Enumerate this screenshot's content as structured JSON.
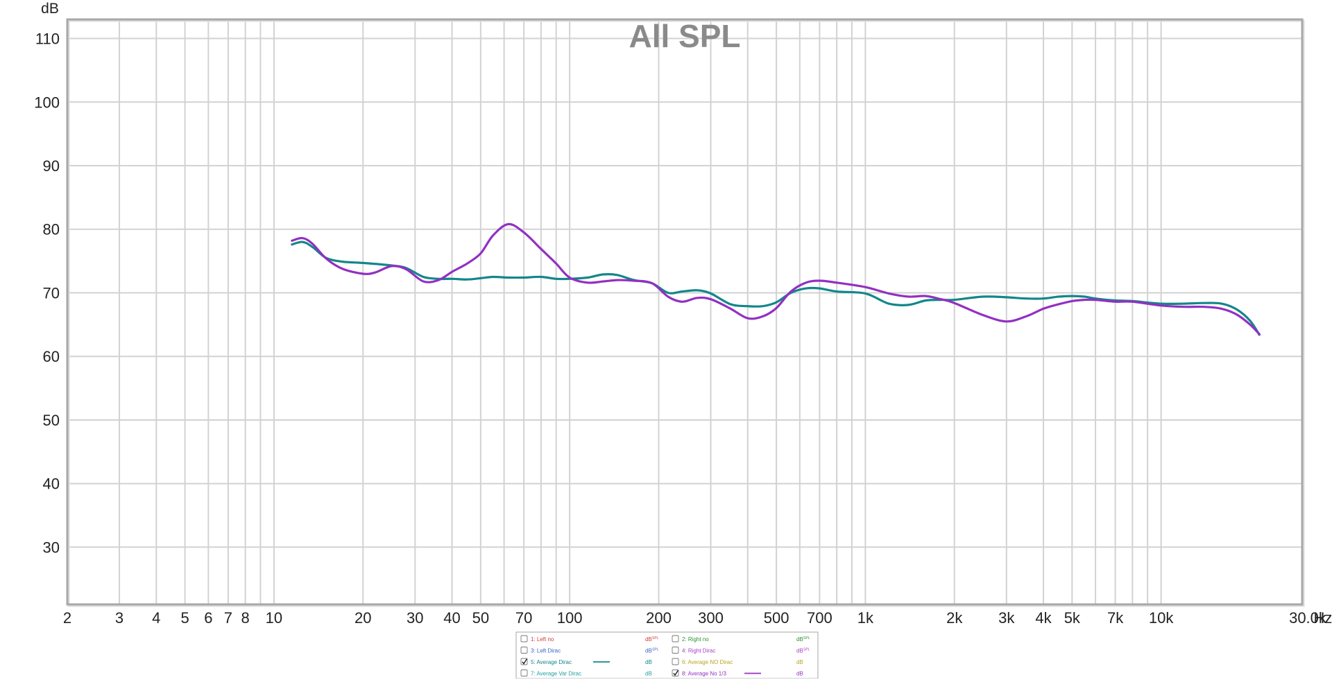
{
  "chart_data": {
    "type": "line",
    "title": "All SPL",
    "ylabel": "dB",
    "xunit": "Hz",
    "xscale": "log",
    "xlim": [
      2,
      30000
    ],
    "ylim": [
      21,
      113
    ],
    "grid": true,
    "colors": {
      "background": "#ffffff",
      "grid": "#d2d2d2",
      "frame": "#a8a8a8",
      "title": "#8a8a8a"
    },
    "yticks": [
      {
        "v": 30,
        "label": "30"
      },
      {
        "v": 40,
        "label": "40"
      },
      {
        "v": 50,
        "label": "50"
      },
      {
        "v": 60,
        "label": "60"
      },
      {
        "v": 70,
        "label": "70"
      },
      {
        "v": 80,
        "label": "80"
      },
      {
        "v": 90,
        "label": "90"
      },
      {
        "v": 100,
        "label": "100"
      },
      {
        "v": 110,
        "label": "110"
      }
    ],
    "xticks": [
      {
        "v": 2,
        "label": "2"
      },
      {
        "v": 3,
        "label": "3"
      },
      {
        "v": 4,
        "label": "4"
      },
      {
        "v": 5,
        "label": "5"
      },
      {
        "v": 6,
        "label": "6"
      },
      {
        "v": 7,
        "label": "7"
      },
      {
        "v": 8,
        "label": "8"
      },
      {
        "v": 10,
        "label": "10"
      },
      {
        "v": 20,
        "label": "20"
      },
      {
        "v": 30,
        "label": "30"
      },
      {
        "v": 40,
        "label": "40"
      },
      {
        "v": 50,
        "label": "50"
      },
      {
        "v": 70,
        "label": "70"
      },
      {
        "v": 100,
        "label": "100"
      },
      {
        "v": 200,
        "label": "200"
      },
      {
        "v": 300,
        "label": "300"
      },
      {
        "v": 500,
        "label": "500"
      },
      {
        "v": 700,
        "label": "700"
      },
      {
        "v": 1000,
        "label": "1k"
      },
      {
        "v": 2000,
        "label": "2k"
      },
      {
        "v": 3000,
        "label": "3k"
      },
      {
        "v": 4000,
        "label": "4k"
      },
      {
        "v": 5000,
        "label": "5k"
      },
      {
        "v": 7000,
        "label": "7k"
      },
      {
        "v": 10000,
        "label": "10k"
      },
      {
        "v": 30000,
        "label": "30.0k"
      }
    ],
    "minor_x_gridlines": [
      9,
      60,
      80,
      90,
      400,
      600,
      800,
      900,
      6000,
      8000,
      9000
    ],
    "series": [
      {
        "name": "5: Average Dirac",
        "color": "#13868a",
        "x": [
          11.5,
          12.5,
          13.5,
          15,
          17,
          20,
          25,
          28,
          32,
          36,
          40,
          45,
          50,
          55,
          62,
          70,
          80,
          90,
          100,
          115,
          130,
          145,
          165,
          190,
          215,
          240,
          270,
          300,
          350,
          400,
          450,
          500,
          560,
          630,
          700,
          800,
          1000,
          1200,
          1400,
          1600,
          1800,
          2000,
          2500,
          3000,
          3500,
          4000,
          4500,
          5000,
          5500,
          6000,
          7000,
          8000,
          10000,
          12000,
          14000,
          16000,
          18000,
          20000
        ],
        "y": [
          77.6,
          78.0,
          77.2,
          75.5,
          74.9,
          74.7,
          74.3,
          73.9,
          72.5,
          72.2,
          72.2,
          72.1,
          72.3,
          72.5,
          72.4,
          72.4,
          72.5,
          72.2,
          72.2,
          72.4,
          72.9,
          72.8,
          72.0,
          71.5,
          70.0,
          70.2,
          70.4,
          69.9,
          68.2,
          67.9,
          67.9,
          68.5,
          70.0,
          70.7,
          70.7,
          70.2,
          69.9,
          68.3,
          68.1,
          68.8,
          68.9,
          68.9,
          69.4,
          69.3,
          69.1,
          69.1,
          69.4,
          69.5,
          69.4,
          69.1,
          68.8,
          68.7,
          68.3,
          68.3,
          68.4,
          68.3,
          67.4,
          65.6
        ],
        "extend_to": [
          21500,
          63.4
        ]
      },
      {
        "name": "8: Average No 1/3",
        "color": "#9230c2",
        "x": [
          11.5,
          12.5,
          13.5,
          15,
          17,
          20,
          22,
          25,
          28,
          32,
          36,
          40,
          45,
          50,
          55,
          62,
          70,
          80,
          90,
          100,
          115,
          130,
          145,
          165,
          190,
          215,
          240,
          270,
          300,
          350,
          400,
          450,
          500,
          560,
          630,
          700,
          800,
          1000,
          1200,
          1400,
          1600,
          1800,
          2000,
          2500,
          3000,
          3500,
          4000,
          4500,
          5000,
          5500,
          6000,
          7000,
          8000,
          10000,
          12000,
          14000,
          16000,
          18000,
          20000
        ],
        "y": [
          78.2,
          78.6,
          77.7,
          75.4,
          73.8,
          73.0,
          73.2,
          74.2,
          73.7,
          71.8,
          72.0,
          73.3,
          74.6,
          76.2,
          79.0,
          80.8,
          79.5,
          76.9,
          74.6,
          72.4,
          71.6,
          71.8,
          72.0,
          71.9,
          71.5,
          69.4,
          68.6,
          69.2,
          69.0,
          67.5,
          66.0,
          66.3,
          67.6,
          70.2,
          71.6,
          71.9,
          71.6,
          70.9,
          69.9,
          69.4,
          69.5,
          69.0,
          68.4,
          66.5,
          65.5,
          66.3,
          67.5,
          68.2,
          68.7,
          68.9,
          68.9,
          68.6,
          68.6,
          68.0,
          67.8,
          67.8,
          67.5,
          66.6,
          65.0
        ],
        "extend_to": [
          21500,
          63.5
        ]
      }
    ]
  },
  "legend": {
    "items": [
      {
        "label": "1: Left no",
        "unit": "dB",
        "unit_sup": "SPL",
        "checked": false,
        "color": "#d23b3b",
        "show_line": false
      },
      {
        "label": "2: Right no",
        "unit": "dB",
        "unit_sup": "SPL",
        "checked": false,
        "color": "#2f8f2f",
        "show_line": false
      },
      {
        "label": "3: Left Dirac",
        "unit": "dB",
        "unit_sup": "SPL",
        "checked": false,
        "color": "#3a5fd0",
        "show_line": false
      },
      {
        "label": "4: Right Dirac",
        "unit": "dB",
        "unit_sup": "SPL",
        "checked": false,
        "color": "#a83cc8",
        "show_line": false
      },
      {
        "label": "5: Average Dirac",
        "unit": "dB",
        "unit_sup": "",
        "checked": true,
        "color": "#13868a",
        "show_line": true
      },
      {
        "label": "6: Average NO Dirac",
        "unit": "dB",
        "unit_sup": "",
        "checked": false,
        "color": "#b8a51e",
        "show_line": false
      },
      {
        "label": "7: Average Var Dirac",
        "unit": "dB",
        "unit_sup": "",
        "checked": false,
        "color": "#22a0a0",
        "show_line": false
      },
      {
        "label": "8: Average No 1/3",
        "unit": "dB",
        "unit_sup": "",
        "checked": true,
        "color": "#9230c2",
        "show_line": true
      }
    ]
  }
}
